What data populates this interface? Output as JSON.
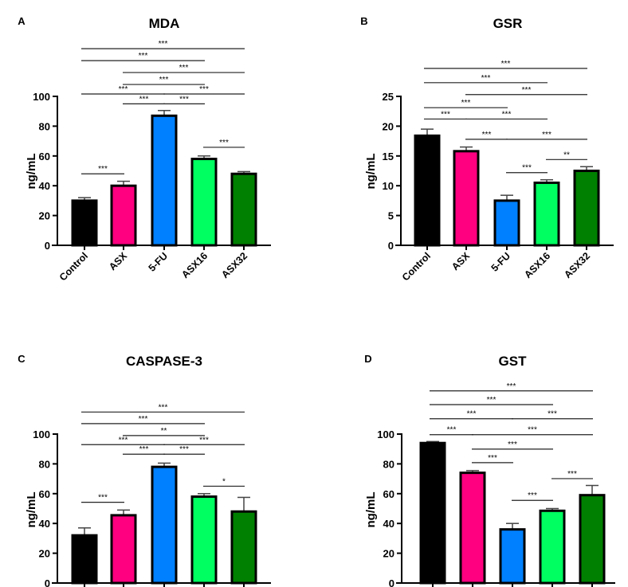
{
  "colors": [
    "#000000",
    "#ff0080",
    "#0080ff",
    "#00ff60",
    "#008000"
  ],
  "chart_data": [
    {
      "type": "bar",
      "panel": "A",
      "title": "MDA",
      "ylabel": "ng/mL",
      "ylim": [
        0,
        100
      ],
      "yticks": [
        "0",
        "20",
        "40",
        "60",
        "80",
        "100"
      ],
      "categories": [
        "Control",
        "ASX",
        "5-FU",
        "ASX16",
        "ASX32"
      ],
      "values": [
        30,
        40,
        87,
        58,
        48
      ],
      "errors": [
        2,
        3,
        3.5,
        2,
        1.5
      ],
      "significance": [
        {
          "from": 0,
          "to": 4,
          "label": "***",
          "y": 132
        },
        {
          "from": 0,
          "to": 3,
          "label": "***",
          "y": 124
        },
        {
          "from": 1,
          "to": 4,
          "label": "***",
          "y": 116
        },
        {
          "from": 1,
          "to": 3,
          "label": "***",
          "y": 108
        },
        {
          "from": 0,
          "to": 2,
          "label": "***",
          "y": 101.6
        },
        {
          "from": 2,
          "to": 4,
          "label": "***",
          "y": 101.6
        },
        {
          "from": 1,
          "to": 2,
          "label": "***",
          "y": 95
        },
        {
          "from": 2,
          "to": 3,
          "label": "***",
          "y": 95
        },
        {
          "from": 3,
          "to": 4,
          "label": "***",
          "y": 65.8
        },
        {
          "from": 0,
          "to": 1,
          "label": "***",
          "y": 48
        }
      ]
    },
    {
      "type": "bar",
      "panel": "B",
      "title": "GSR",
      "ylabel": "ng/mL",
      "ylim": [
        0,
        25
      ],
      "yticks": [
        "0",
        "5",
        "10",
        "15",
        "20",
        "25"
      ],
      "categories": [
        "Control",
        "ASX",
        "5-FU",
        "ASX16",
        "ASX32"
      ],
      "values": [
        18.4,
        15.8,
        7.5,
        10.5,
        12.5
      ],
      "errors": [
        1.1,
        0.7,
        0.9,
        0.5,
        0.7
      ],
      "significance": [
        {
          "from": 0,
          "to": 4,
          "label": "***",
          "y": 29.7
        },
        {
          "from": 0,
          "to": 3,
          "label": "***",
          "y": 27.3
        },
        {
          "from": 1,
          "to": 4,
          "label": "***",
          "y": 25.3
        },
        {
          "from": 0,
          "to": 2,
          "label": "***",
          "y": 23.1
        },
        {
          "from": 0,
          "to": 1,
          "label": "***",
          "y": 21.2
        },
        {
          "from": 1,
          "to": 3,
          "label": "***",
          "y": 21.2
        },
        {
          "from": 1,
          "to": 2,
          "label": "***",
          "y": 17.8
        },
        {
          "from": 2,
          "to": 4,
          "label": "***",
          "y": 17.8
        },
        {
          "from": 3,
          "to": 4,
          "label": "**",
          "y": 14.4
        },
        {
          "from": 2,
          "to": 3,
          "label": "***",
          "y": 12.2
        }
      ]
    },
    {
      "type": "bar",
      "panel": "C",
      "title": "CASPASE-3",
      "ylabel": "ng/mL",
      "ylim": [
        0,
        100
      ],
      "yticks": [
        "0",
        "20",
        "40",
        "60",
        "80",
        "100"
      ],
      "values": [
        32,
        45.5,
        78,
        58,
        48
      ],
      "errors": [
        5,
        3.5,
        2.5,
        2,
        9.5
      ],
      "significance": [
        {
          "from": 0,
          "to": 4,
          "label": "***",
          "y": 114.8
        },
        {
          "from": 0,
          "to": 3,
          "label": "***",
          "y": 107
        },
        {
          "from": 1,
          "to": 3,
          "label": "**",
          "y": 99
        },
        {
          "from": 0,
          "to": 2,
          "label": "***",
          "y": 92.9
        },
        {
          "from": 2,
          "to": 4,
          "label": "***",
          "y": 92.9
        },
        {
          "from": 1,
          "to": 2,
          "label": "***",
          "y": 86.5
        },
        {
          "from": 2,
          "to": 3,
          "label": "***",
          "y": 86.5
        },
        {
          "from": 3,
          "to": 4,
          "label": "*",
          "y": 65
        },
        {
          "from": 0,
          "to": 1,
          "label": "***",
          "y": 54.2
        }
      ]
    },
    {
      "type": "bar",
      "panel": "D",
      "title": "GST",
      "ylabel": "ng/mL",
      "ylim": [
        0,
        100
      ],
      "yticks": [
        "0",
        "20",
        "40",
        "60",
        "80",
        "100"
      ],
      "values": [
        94,
        74,
        36,
        48.5,
        59
      ],
      "errors": [
        1,
        1.5,
        4,
        1.5,
        6.5
      ],
      "significance": [
        {
          "from": 0,
          "to": 4,
          "label": "***",
          "y": 129
        },
        {
          "from": 0,
          "to": 3,
          "label": "***",
          "y": 119.8
        },
        {
          "from": 0,
          "to": 2,
          "label": "***",
          "y": 110.3
        },
        {
          "from": 2,
          "to": 4,
          "label": "***",
          "y": 110.3
        },
        {
          "from": 0,
          "to": 1,
          "label": "***",
          "y": 99.6
        },
        {
          "from": 1,
          "to": 4,
          "label": "***",
          "y": 99.6
        },
        {
          "from": 1,
          "to": 3,
          "label": "***",
          "y": 89.9
        },
        {
          "from": 1,
          "to": 2,
          "label": "***",
          "y": 80.8
        },
        {
          "from": 3,
          "to": 4,
          "label": "***",
          "y": 70.1
        },
        {
          "from": 2,
          "to": 3,
          "label": "***",
          "y": 55.5
        }
      ]
    }
  ]
}
